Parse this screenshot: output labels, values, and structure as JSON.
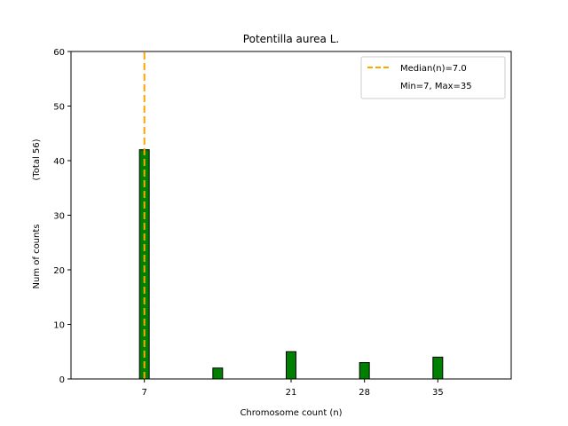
{
  "chart_data": {
    "type": "bar",
    "title": "Potentilla aurea L.",
    "xlabel": "Chromosome count (n)",
    "ylabel": "Num of counts",
    "ylabel_note": "(Total 56)",
    "x": [
      7,
      14,
      21,
      28,
      35
    ],
    "values": [
      42,
      2,
      5,
      3,
      4
    ],
    "xticks": [
      7,
      21,
      28,
      35
    ],
    "xlim": [
      0,
      42
    ],
    "ylim": [
      0,
      60
    ],
    "yticks": [
      0,
      10,
      20,
      30,
      40,
      50,
      60
    ],
    "median": 7.0,
    "legend": {
      "placement": "top-right",
      "median_label": "Median(n)=7.0",
      "range_label": "Min=7, Max=35"
    },
    "grid": false,
    "colors": {
      "bar": "#008000",
      "bar_edge": "#000000",
      "median_line": "#ffa500"
    }
  }
}
